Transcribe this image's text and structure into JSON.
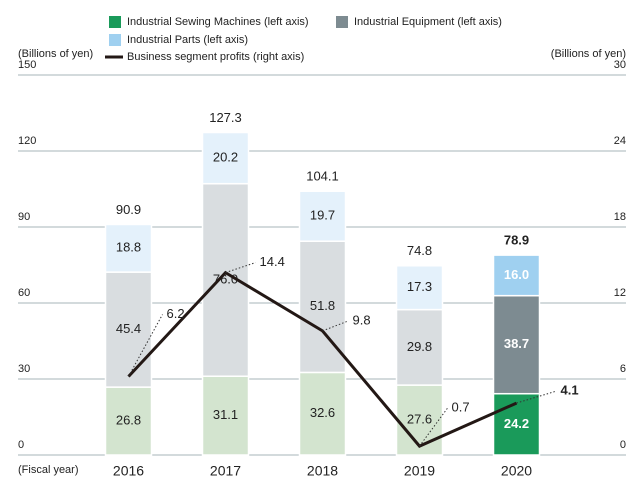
{
  "chart_data": {
    "type": "bar-line",
    "legend": [
      "Industrial Sewing Machines (left axis)",
      "Industrial Equipment (left axis)",
      "Industrial Parts (left axis)",
      "Business segment profits (right axis)"
    ],
    "y_label": "(Billions of yen)",
    "y2_label": "(Billions of yen)",
    "x_label": "(Fiscal year)",
    "categories": [
      "2016",
      "2017",
      "2018",
      "2019",
      "2020"
    ],
    "emphasis": [
      false,
      false,
      false,
      false,
      true
    ],
    "series": [
      {
        "name": "Industrial Sewing Machines (left axis)",
        "color": "#1a9a5a",
        "colors": [
          "#d3e4cf",
          "#d3e4cf",
          "#d3e4cf",
          "#d3e4cf",
          "#1a9a5a"
        ],
        "values": [
          26.8,
          31.1,
          32.6,
          27.6,
          24.2
        ],
        "value_labels": [
          "26.8",
          "31.1",
          "32.6",
          "27.6",
          "24.2"
        ]
      },
      {
        "name": "Industrial Equipment (left axis)",
        "color": "#7d8b91",
        "colors": [
          "#d9dde0",
          "#d9dde0",
          "#d9dde0",
          "#d9dde0",
          "#7d8b91"
        ],
        "values": [
          45.4,
          76.0,
          51.8,
          29.8,
          38.7
        ],
        "value_labels": [
          "45.4",
          "76.0",
          "51.8",
          "29.8",
          "38.7"
        ]
      },
      {
        "name": "Industrial Parts (left axis)",
        "color": "#9fd0f0",
        "colors": [
          "#e4f1fb",
          "#e4f1fb",
          "#e4f1fb",
          "#e4f1fb",
          "#9fd0f0"
        ],
        "values": [
          18.8,
          20.2,
          19.7,
          17.3,
          16.0
        ],
        "value_labels": [
          "18.8",
          "20.2",
          "19.7",
          "17.3",
          "16.0"
        ]
      },
      {
        "name": "Business segment profits (right axis)",
        "color": "#231815",
        "axis": "y2",
        "type": "line",
        "values": [
          6.2,
          14.4,
          9.8,
          0.7,
          4.1
        ]
      }
    ],
    "totals": [
      90.9,
      127.3,
      104.1,
      74.8,
      78.9
    ],
    "ylim": [
      0,
      150
    ],
    "yticks": [
      0,
      30,
      60,
      90,
      120,
      150
    ],
    "y2lim": [
      0,
      30
    ],
    "y2ticks": [
      0,
      6,
      12,
      18,
      24,
      30
    ],
    "grid": true
  }
}
